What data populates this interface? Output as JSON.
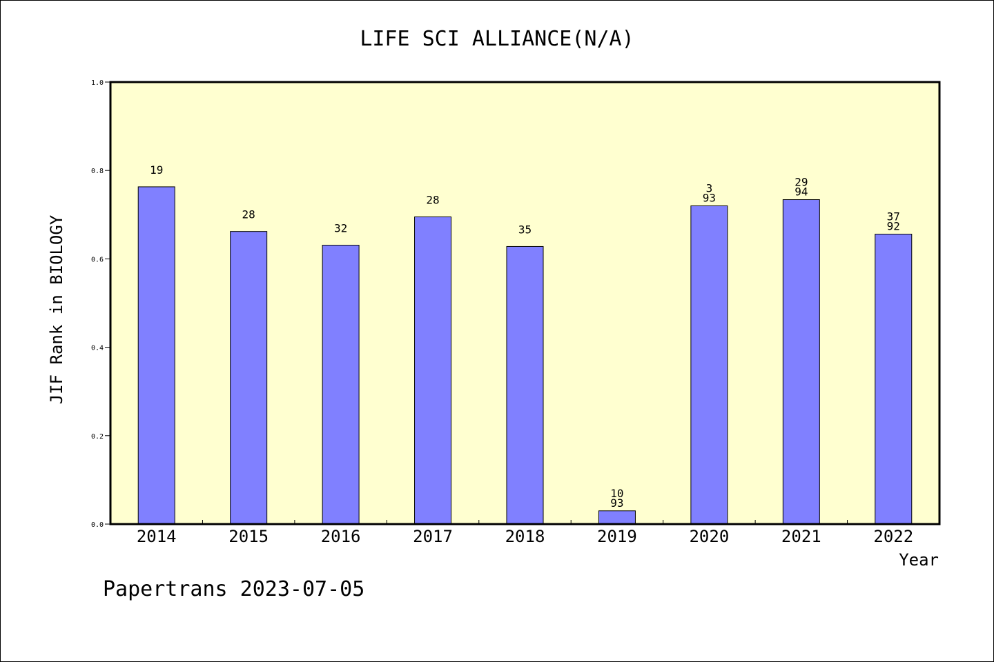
{
  "chart_data": {
    "type": "bar",
    "title": "LIFE SCI ALLIANCE(N/A)",
    "xlabel": "Year",
    "ylabel": "JIF Rank in BIOLOGY",
    "ylim": [
      0,
      1
    ],
    "yticks": [
      "0.0",
      "0.2",
      "0.4",
      "0.6",
      "0.8",
      "1.0"
    ],
    "categories": [
      "2014",
      "2015",
      "2016",
      "2017",
      "2018",
      "2019",
      "2020",
      "2021",
      "2022"
    ],
    "values": [
      0.763,
      0.662,
      0.631,
      0.695,
      0.628,
      0.03,
      0.72,
      0.734,
      0.656
    ],
    "data_labels": [
      [
        "19"
      ],
      [
        "28"
      ],
      [
        "32"
      ],
      [
        "28"
      ],
      [
        "35"
      ],
      [
        "10",
        "93"
      ],
      [
        "3",
        "93"
      ],
      [
        "29",
        "94"
      ],
      [
        "37",
        "92"
      ]
    ],
    "bar_color": "#8080ff",
    "plot_background": "#ffffd0",
    "grid": false,
    "legend": "none"
  },
  "footer": {
    "credit": "Papertrans 2023-07-05"
  }
}
